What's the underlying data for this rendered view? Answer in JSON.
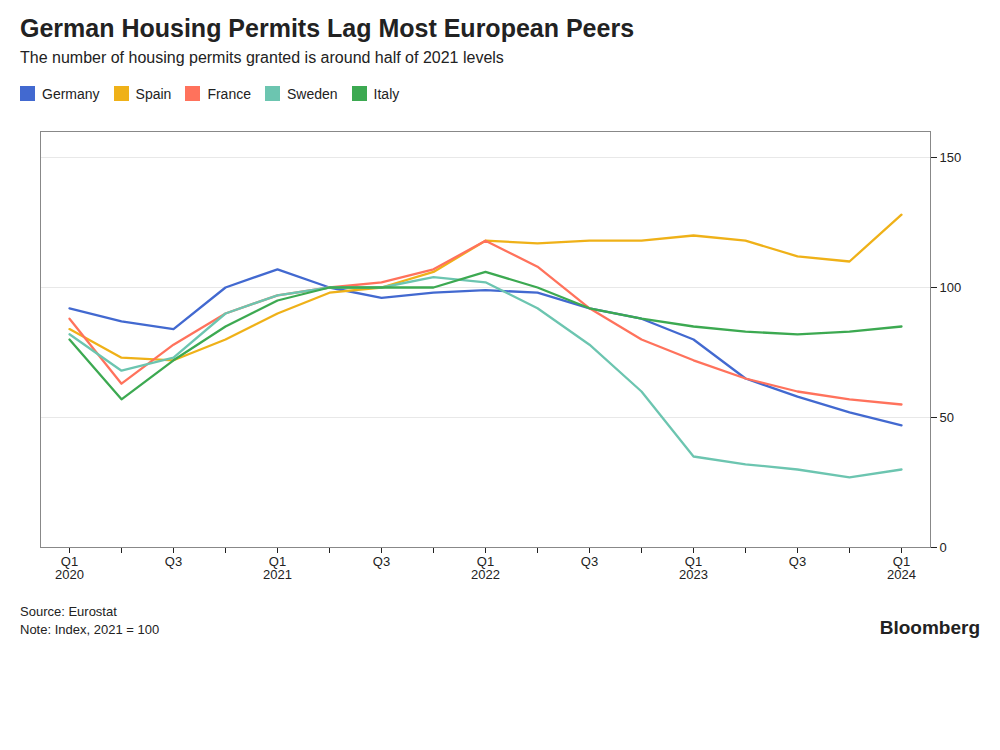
{
  "chart_data": {
    "type": "line",
    "title": "German Housing Permits Lag Most European Peers",
    "subtitle": "The number of housing permits granted is around half of 2021 levels",
    "source": "Source: Eurostat",
    "note": "Note: Index, 2021 = 100",
    "annotations": [
      "Bloomberg"
    ],
    "categories": [
      "Q1\n2020",
      null,
      "Q3",
      null,
      "Q1\n2021",
      null,
      "Q3",
      null,
      "Q1\n2022",
      null,
      "Q3",
      null,
      "Q1\n2023",
      null,
      "Q3",
      null,
      "Q1\n2024"
    ],
    "series": [
      {
        "name": "Germany",
        "values": [
          92,
          87,
          84,
          100,
          107,
          100,
          96,
          98,
          99,
          98,
          92,
          88,
          80,
          65,
          58,
          52,
          47
        ]
      },
      {
        "name": "Spain",
        "values": [
          84,
          73,
          72,
          80,
          90,
          98,
          100,
          106,
          118,
          117,
          118,
          118,
          120,
          118,
          112,
          110,
          128
        ]
      },
      {
        "name": "France",
        "values": [
          88,
          63,
          78,
          90,
          97,
          100,
          102,
          107,
          118,
          108,
          92,
          80,
          72,
          65,
          60,
          57,
          55
        ]
      },
      {
        "name": "Sweden",
        "values": [
          82,
          68,
          73,
          90,
          97,
          100,
          100,
          104,
          102,
          92,
          78,
          60,
          35,
          32,
          30,
          27,
          30
        ]
      },
      {
        "name": "Italy",
        "values": [
          80,
          57,
          72,
          85,
          95,
          100,
          100,
          100,
          106,
          100,
          92,
          88,
          85,
          83,
          82,
          83,
          85
        ]
      }
    ],
    "ylim": [
      0,
      160
    ],
    "yticks": [
      0,
      50,
      100,
      150
    ],
    "grid": true,
    "legend": "top-left"
  }
}
